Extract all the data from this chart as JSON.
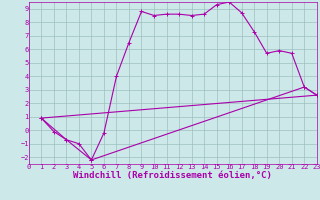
{
  "xlabel": "Windchill (Refroidissement éolien,°C)",
  "xlim": [
    0,
    23
  ],
  "ylim": [
    -2.5,
    9.5
  ],
  "xticks": [
    0,
    1,
    2,
    3,
    4,
    5,
    6,
    7,
    8,
    9,
    10,
    11,
    12,
    13,
    14,
    15,
    16,
    17,
    18,
    19,
    20,
    21,
    22,
    23
  ],
  "yticks": [
    -2,
    -1,
    0,
    1,
    2,
    3,
    4,
    5,
    6,
    7,
    8,
    9
  ],
  "bg_color": "#cce8e8",
  "grid_color": "#9fbfbf",
  "line_color": "#aa00aa",
  "line1_x": [
    1,
    2,
    3,
    4,
    5,
    6,
    7,
    8,
    9,
    10,
    11,
    12,
    13,
    14,
    15,
    16,
    17,
    18,
    19,
    20,
    21,
    22,
    23
  ],
  "line1_y": [
    0.9,
    -0.1,
    -0.7,
    -1.0,
    -2.2,
    -0.2,
    4.0,
    6.5,
    8.8,
    8.5,
    8.6,
    8.6,
    8.5,
    8.6,
    9.3,
    9.5,
    8.7,
    7.3,
    5.7,
    5.9,
    5.7,
    3.2,
    2.6
  ],
  "line2_x": [
    1,
    3,
    5,
    22,
    23
  ],
  "line2_y": [
    0.9,
    -0.7,
    -2.2,
    3.2,
    2.6
  ],
  "line3_x": [
    1,
    23
  ],
  "line3_y": [
    0.9,
    2.6
  ],
  "font_family": "monospace",
  "tick_fontsize": 5.0,
  "label_fontsize": 6.5
}
